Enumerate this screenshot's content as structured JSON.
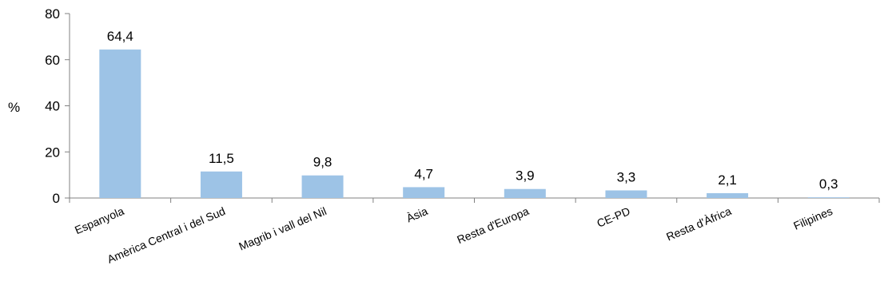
{
  "chart_data": {
    "type": "bar",
    "title": "",
    "xlabel": "",
    "ylabel": "%",
    "ylim": [
      0,
      80
    ],
    "yticks": [
      "0",
      "20",
      "40",
      "60",
      "80"
    ],
    "categories": [
      "Espanyola",
      "Amèrica Central i del Sud",
      "Magrib i vall del Nil",
      "Àsia",
      "Resta d'Europa",
      "CE-PD",
      "Resta d'Àfrica",
      "Filipines"
    ],
    "values": [
      64.4,
      11.5,
      9.8,
      4.7,
      3.9,
      3.3,
      2.1,
      0.3
    ],
    "data_labels": [
      "64,4",
      "11,5",
      "9,8",
      "4,7",
      "3,9",
      "3,3",
      "2,1",
      "0,3"
    ],
    "grid": false,
    "legend": "none",
    "bar_color": "#9DC3E6"
  }
}
